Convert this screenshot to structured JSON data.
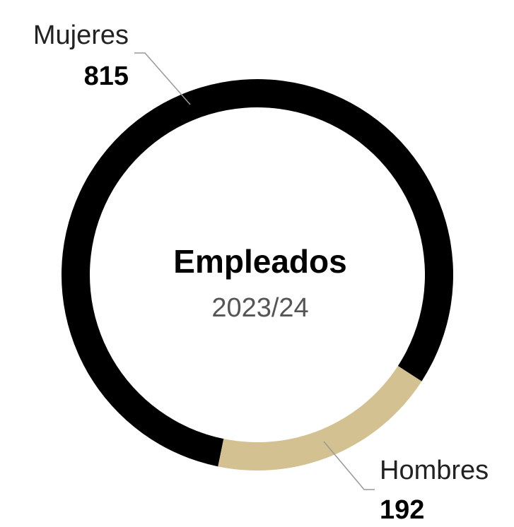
{
  "chart_data": {
    "type": "donut",
    "title": "Empleados",
    "subtitle": "2023/24",
    "categories": [
      "Mujeres",
      "Hombres"
    ],
    "values": [
      815,
      192
    ],
    "colors": [
      "#000000",
      "#d4c192"
    ]
  }
}
